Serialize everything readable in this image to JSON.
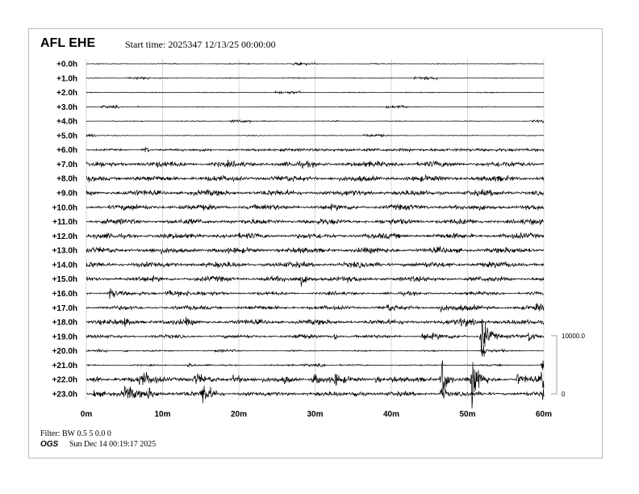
{
  "header": {
    "station": "AFL EHE",
    "start_time": "Start time: 2025347 12/13/25 00:00:00"
  },
  "footer": {
    "filter": "Filter: BW 0.5 5 0.0 0",
    "org": "OGS",
    "generated": "Sun Dec 14 00:19:17 2025"
  },
  "chart_data": {
    "type": "line",
    "subtype": "helicorder",
    "title": "AFL EHE",
    "xlabel": "",
    "ylabel": "",
    "x_ticks": [
      "0m",
      "10m",
      "20m",
      "30m",
      "40m",
      "50m",
      "60m"
    ],
    "xlim": [
      0,
      60
    ],
    "grid": "vertical",
    "row_labels": [
      "+0.0h",
      "+1.0h",
      "+2.0h",
      "+3.0h",
      "+4.0h",
      "+5.0h",
      "+6.0h",
      "+7.0h",
      "+8.0h",
      "+9.0h",
      "+10.0h",
      "+11.0h",
      "+12.0h",
      "+13.0h",
      "+14.0h",
      "+15.0h",
      "+16.0h",
      "+17.0h",
      "+18.0h",
      "+19.0h",
      "+20.0h",
      "+21.0h",
      "+22.0h",
      "+23.0h"
    ],
    "scale_labels": [
      "10000.0",
      "0"
    ],
    "scale_range": [
      0,
      10000
    ],
    "trace_color": "#000000",
    "rows": [
      {
        "noise": 60,
        "segments": [
          [
            27,
            30
          ]
        ]
      },
      {
        "noise": 60,
        "segments": [
          [
            5.5,
            8.3
          ],
          [
            43,
            46
          ]
        ]
      },
      {
        "noise": 60,
        "segments": [
          [
            24.8,
            28
          ]
        ]
      },
      {
        "noise": 60,
        "segments": [
          [
            1.8,
            4.3
          ],
          [
            39.3,
            42.3
          ]
        ]
      },
      {
        "noise": 60,
        "segments": [
          [
            18.7,
            21.6
          ],
          [
            58.5,
            60
          ]
        ]
      },
      {
        "noise": 60,
        "segments": [
          [
            0,
            1.3
          ],
          [
            36.3,
            39
          ]
        ]
      },
      {
        "noise": 130,
        "segments": [
          [
            7.2,
            8.3
          ],
          [
            12,
            16.5
          ],
          [
            21.5,
            60
          ]
        ],
        "events": [
          [
            7.7,
            300,
            0.5
          ]
        ]
      },
      {
        "noise": 420
      },
      {
        "noise": 420
      },
      {
        "noise": 420
      },
      {
        "noise": 400
      },
      {
        "noise": 400
      },
      {
        "noise": 400
      },
      {
        "noise": 420
      },
      {
        "noise": 420
      },
      {
        "noise": 380,
        "events": [
          [
            28,
            900,
            1
          ]
        ]
      },
      {
        "noise": 250,
        "events": [
          [
            3,
            1100,
            0.8
          ],
          [
            10.5,
            500,
            3
          ]
        ]
      },
      {
        "noise": 300,
        "events": [
          [
            39.5,
            500,
            0.8
          ],
          [
            46,
            450,
            3
          ],
          [
            59,
            500,
            1
          ]
        ]
      },
      {
        "noise": 380,
        "events": [
          [
            5,
            500,
            1
          ],
          [
            13,
            400,
            0.5
          ],
          [
            49,
            400,
            2
          ]
        ]
      },
      {
        "noise": 250,
        "events": [
          [
            27.5,
            500,
            0.4
          ],
          [
            32.5,
            700,
            0.4
          ],
          [
            44,
            500,
            2
          ],
          [
            51.8,
            3500,
            0.8
          ],
          [
            58,
            900,
            0.8
          ]
        ]
      },
      {
        "noise": 100,
        "segments": [
          [
            1.2,
            3
          ],
          [
            16.8,
            19.6
          ],
          [
            51.5,
            55
          ]
        ],
        "events": [
          [
            5,
            250,
            0.4
          ],
          [
            52,
            1800,
            0.3
          ]
        ]
      },
      {
        "noise": 110,
        "segments": [
          [
            28.3,
            31.3
          ]
        ],
        "events": [
          [
            13.3,
            500,
            0.6
          ],
          [
            59.8,
            1500,
            0.4
          ]
        ]
      },
      {
        "noise": 350,
        "events": [
          [
            1,
            700,
            0.5
          ],
          [
            7,
            1100,
            2
          ],
          [
            14.3,
            900,
            0.8
          ],
          [
            19.3,
            900,
            1
          ],
          [
            26,
            600,
            0.5
          ],
          [
            29.7,
            900,
            1.2
          ],
          [
            32.5,
            900,
            0.8
          ],
          [
            38,
            600,
            0.5
          ],
          [
            40,
            500,
            0.5
          ],
          [
            46.6,
            4000,
            0.6
          ],
          [
            50.6,
            4500,
            0.7
          ],
          [
            56.5,
            900,
            1.5
          ],
          [
            59.9,
            4000,
            0.4
          ]
        ]
      },
      {
        "noise": 330,
        "segments": [
          [
            24.8,
            27.8
          ]
        ],
        "events": [
          [
            1,
            700,
            0.8
          ],
          [
            5,
            1100,
            1.5
          ],
          [
            8,
            900,
            1
          ],
          [
            15.2,
            2000,
            1
          ],
          [
            35,
            700,
            0.8
          ],
          [
            46.6,
            1800,
            0.4
          ],
          [
            59.8,
            1500,
            0.3
          ]
        ]
      }
    ]
  }
}
